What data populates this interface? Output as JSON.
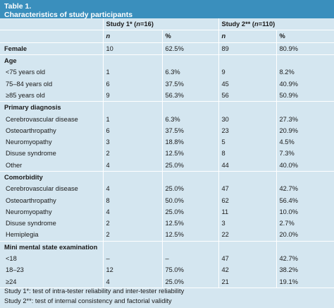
{
  "table": {
    "label": "Table 1.",
    "caption": "Characteristics of study participants"
  },
  "columns": {
    "study1_prefix": "Study 1* (",
    "study1_n": "n",
    "study1_suffix": "=16)",
    "study2_prefix": "Study 2** (",
    "study2_n": "n",
    "study2_suffix": "=110)",
    "n_label": "n",
    "pct_label": "%"
  },
  "rows": {
    "female": {
      "label": "Female",
      "s1n": "10",
      "s1p": "62.5%",
      "s2n": "89",
      "s2p": "80.9%"
    },
    "age": {
      "label": "Age"
    },
    "age1": {
      "label": "<75 years old",
      "s1n": "1",
      "s1p": "6.3%",
      "s2n": "9",
      "s2p": "8.2%"
    },
    "age2": {
      "label": "75–84 years old",
      "s1n": "6",
      "s1p": "37.5%",
      "s2n": "45",
      "s2p": "40.9%"
    },
    "age3": {
      "label": "≥85 years old",
      "s1n": "9",
      "s1p": "56.3%",
      "s2n": "56",
      "s2p": "50.9%"
    },
    "dx": {
      "label": "Primary diagnosis"
    },
    "dx1": {
      "label": "Cerebrovascular disease",
      "s1n": "1",
      "s1p": "6.3%",
      "s2n": "30",
      "s2p": "27.3%"
    },
    "dx2": {
      "label": "Osteoarthropathy",
      "s1n": "6",
      "s1p": "37.5%",
      "s2n": "23",
      "s2p": "20.9%"
    },
    "dx3": {
      "label": "Neuromyopathy",
      "s1n": "3",
      "s1p": "18.8%",
      "s2n": "5",
      "s2p": "4.5%"
    },
    "dx4": {
      "label": "Disuse syndrome",
      "s1n": "2",
      "s1p": "12.5%",
      "s2n": "8",
      "s2p": "7.3%"
    },
    "dx5": {
      "label": "Other",
      "s1n": "4",
      "s1p": "25.0%",
      "s2n": "44",
      "s2p": "40.0%"
    },
    "co": {
      "label": "Comorbidity"
    },
    "co1": {
      "label": "Cerebrovascular disease",
      "s1n": "4",
      "s1p": "25.0%",
      "s2n": "47",
      "s2p": "42.7%"
    },
    "co2": {
      "label": "Osteoarthropathy",
      "s1n": "8",
      "s1p": "50.0%",
      "s2n": "62",
      "s2p": "56.4%"
    },
    "co3": {
      "label": "Neuromyopathy",
      "s1n": "4",
      "s1p": "25.0%",
      "s2n": "11",
      "s2p": "10.0%"
    },
    "co4": {
      "label": "Disuse syndrome",
      "s1n": "2",
      "s1p": "12.5%",
      "s2n": "3",
      "s2p": "2.7%"
    },
    "co5": {
      "label": "Hemiplegia",
      "s1n": "2",
      "s1p": "12.5%",
      "s2n": "22",
      "s2p": "20.0%"
    },
    "mm": {
      "label": "Mini mental state examination"
    },
    "mm1": {
      "label": "<18",
      "s1n": "–",
      "s1p": "–",
      "s2n": "47",
      "s2p": "42.7%"
    },
    "mm2": {
      "label": "18–23",
      "s1n": "12",
      "s1p": "75.0%",
      "s2n": "42",
      "s2p": "38.2%"
    },
    "mm3": {
      "label": "≥24",
      "s1n": "4",
      "s1p": "25.0%",
      "s2n": "21",
      "s2p": "19.1%"
    }
  },
  "notes": {
    "study1": "Study 1*: test of intra-tester reliability and inter-tester reliability",
    "study2": "Study 2**: test of internal consistency and factorial validity"
  }
}
